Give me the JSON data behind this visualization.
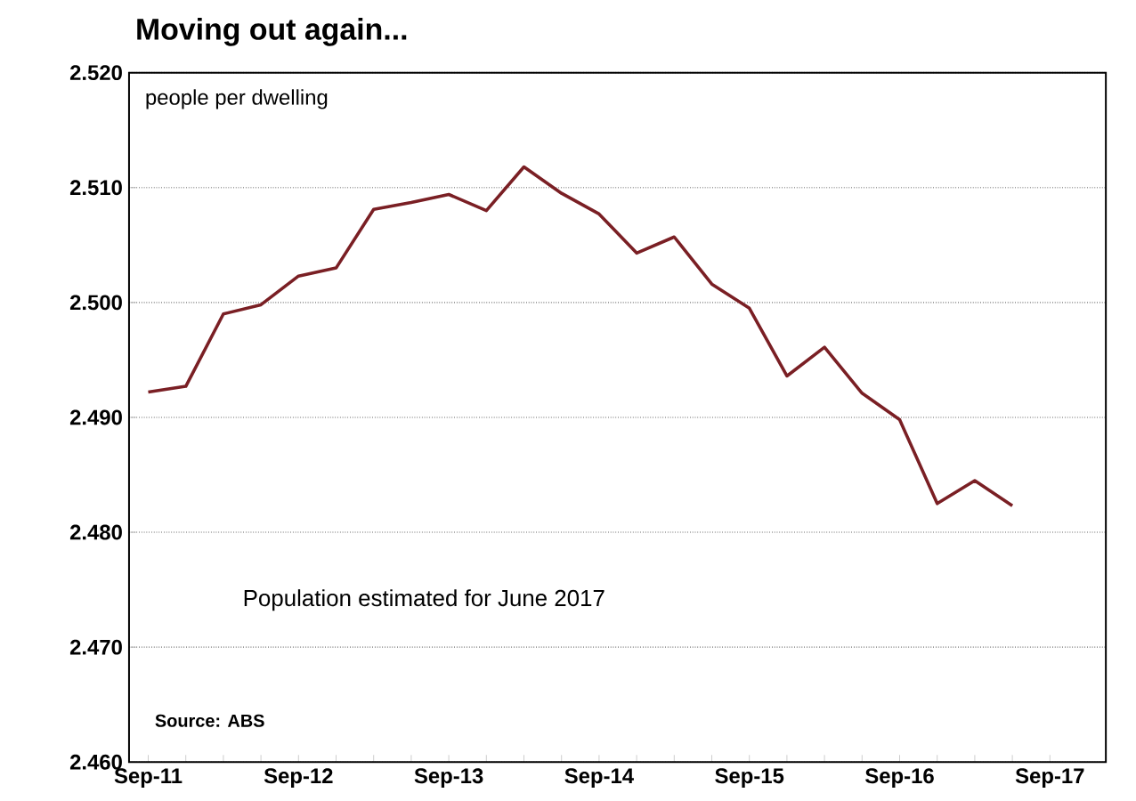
{
  "chart_data": {
    "type": "line",
    "title": "Moving out again...",
    "ylabel": "people per dwelling",
    "annotations": [
      "Population estimated for June 2017",
      "Source: ABS"
    ],
    "x": [
      "2011-09",
      "2011-12",
      "2012-03",
      "2012-06",
      "2012-09",
      "2012-12",
      "2013-03",
      "2013-06",
      "2013-09",
      "2013-12",
      "2014-03",
      "2014-06",
      "2014-09",
      "2014-12",
      "2015-03",
      "2015-06",
      "2015-09",
      "2015-12",
      "2016-03",
      "2016-06",
      "2016-09",
      "2016-12",
      "2017-03",
      "2017-06"
    ],
    "series": [
      {
        "color": "#7a1f24",
        "values": [
          2.4922,
          2.4927,
          2.499,
          2.4998,
          2.5023,
          2.503,
          2.5081,
          2.5087,
          2.5094,
          2.508,
          2.5118,
          2.5095,
          2.5077,
          2.5043,
          2.5057,
          2.5016,
          2.4995,
          2.4936,
          2.4961,
          2.4921,
          2.4898,
          2.4825,
          2.4845,
          2.4823
        ]
      }
    ],
    "xlim": [
      "2011-07-15",
      "2018-01-15"
    ],
    "xticks": [
      {
        "value": "2011-09",
        "label": "Sep-11"
      },
      {
        "value": "2011-12",
        "label": null
      },
      {
        "value": "2012-03",
        "label": null
      },
      {
        "value": "2012-06",
        "label": null
      },
      {
        "value": "2012-09",
        "label": "Sep-12"
      },
      {
        "value": "2012-12",
        "label": null
      },
      {
        "value": "2013-03",
        "label": null
      },
      {
        "value": "2013-06",
        "label": null
      },
      {
        "value": "2013-09",
        "label": "Sep-13"
      },
      {
        "value": "2013-12",
        "label": null
      },
      {
        "value": "2014-03",
        "label": null
      },
      {
        "value": "2014-06",
        "label": null
      },
      {
        "value": "2014-09",
        "label": "Sep-14"
      },
      {
        "value": "2014-12",
        "label": null
      },
      {
        "value": "2015-03",
        "label": null
      },
      {
        "value": "2015-06",
        "label": null
      },
      {
        "value": "2015-09",
        "label": "Sep-15"
      },
      {
        "value": "2015-12",
        "label": null
      },
      {
        "value": "2016-03",
        "label": null
      },
      {
        "value": "2016-06",
        "label": null
      },
      {
        "value": "2016-09",
        "label": "Sep-16"
      },
      {
        "value": "2016-12",
        "label": null
      },
      {
        "value": "2017-03",
        "label": null
      },
      {
        "value": "2017-06",
        "label": null
      },
      {
        "value": "2017-09",
        "label": "Sep-17"
      }
    ],
    "ylim": [
      2.46,
      2.52
    ],
    "yticks": [
      {
        "value": 2.46,
        "label": "2.460"
      },
      {
        "value": 2.47,
        "label": "2.470"
      },
      {
        "value": 2.48,
        "label": "2.480"
      },
      {
        "value": 2.49,
        "label": "2.490"
      },
      {
        "value": 2.5,
        "label": "2.500"
      },
      {
        "value": 2.51,
        "label": "2.510"
      },
      {
        "value": 2.52,
        "label": "2.520"
      }
    ],
    "grid": "y",
    "marker": "none",
    "line_style": "solid"
  }
}
